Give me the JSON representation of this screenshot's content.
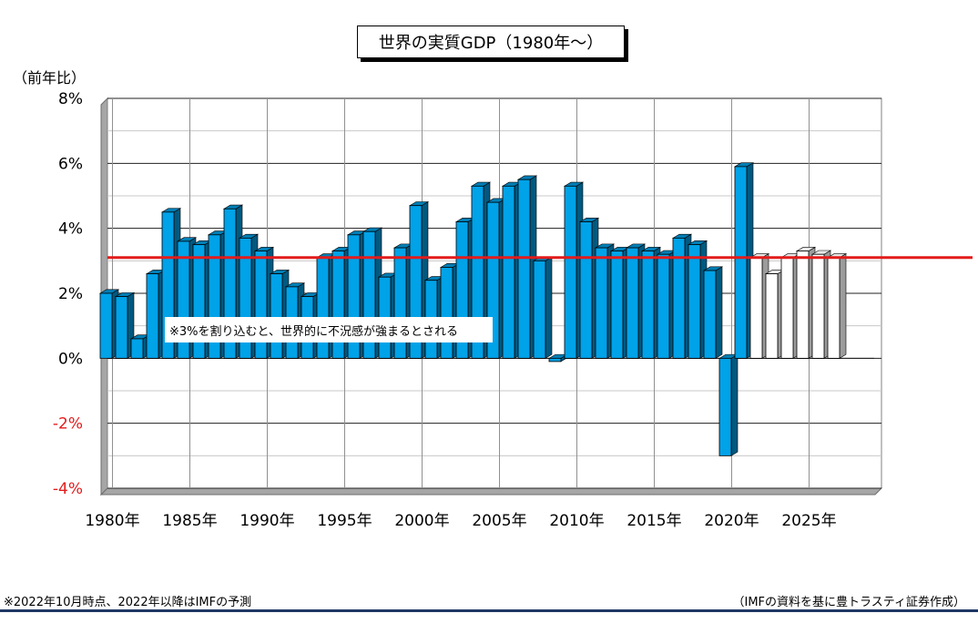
{
  "header": {
    "title": "世界の実質GDP（1980年～）",
    "ylabel": "（前年比）"
  },
  "footer": {
    "note": "※2022年10月時点、2022年以降はIMFの予測",
    "source": "（IMFの資料を基に豊トラスティ証券作成）"
  },
  "colors": {
    "actual_bar": "#00a2e8",
    "forecast_bar": "#ffffff",
    "reference_line": "#e31b1b",
    "negative_tick": "#e31b1b",
    "bottom_rule": "#1f3864"
  },
  "chart_data": {
    "type": "bar",
    "title": "世界の実質GDP（1980年～）",
    "ylabel": "（前年比）",
    "ylim": [
      -4,
      8
    ],
    "yticks": [
      {
        "value": 8,
        "label": "8%"
      },
      {
        "value": 6,
        "label": "6%"
      },
      {
        "value": 4,
        "label": "4%"
      },
      {
        "value": 2,
        "label": "2%"
      },
      {
        "value": 0,
        "label": "0%"
      },
      {
        "value": -2,
        "label": "-2%"
      },
      {
        "value": -4,
        "label": "-4%"
      }
    ],
    "xticks": [
      {
        "year": 1980,
        "label": "1980年"
      },
      {
        "year": 1985,
        "label": "1985年"
      },
      {
        "year": 1990,
        "label": "1990年"
      },
      {
        "year": 1995,
        "label": "1995年"
      },
      {
        "year": 2000,
        "label": "2000年"
      },
      {
        "year": 2005,
        "label": "2005年"
      },
      {
        "year": 2010,
        "label": "2010年"
      },
      {
        "year": 2015,
        "label": "2015年"
      },
      {
        "year": 2020,
        "label": "2020年"
      },
      {
        "year": 2025,
        "label": "2025年"
      }
    ],
    "years": [
      1980,
      1981,
      1982,
      1983,
      1984,
      1985,
      1986,
      1987,
      1988,
      1989,
      1990,
      1991,
      1992,
      1993,
      1994,
      1995,
      1996,
      1997,
      1998,
      1999,
      2000,
      2001,
      2002,
      2003,
      2004,
      2005,
      2006,
      2007,
      2008,
      2009,
      2010,
      2011,
      2012,
      2013,
      2014,
      2015,
      2016,
      2017,
      2018,
      2019,
      2020,
      2021,
      2022,
      2023,
      2024,
      2025,
      2026,
      2027
    ],
    "values": [
      2.0,
      1.9,
      0.6,
      2.6,
      4.5,
      3.6,
      3.5,
      3.8,
      4.6,
      3.7,
      3.3,
      2.6,
      2.2,
      1.9,
      3.1,
      3.3,
      3.8,
      3.9,
      2.5,
      3.4,
      4.7,
      2.4,
      2.8,
      4.2,
      5.3,
      4.8,
      5.3,
      5.5,
      3.0,
      -0.1,
      5.3,
      4.2,
      3.4,
      3.3,
      3.4,
      3.3,
      3.2,
      3.7,
      3.5,
      2.7,
      -3.0,
      5.9,
      3.1,
      2.6,
      3.1,
      3.3,
      3.2,
      3.1
    ],
    "forecast_from": 2022,
    "reference_line": 3.1,
    "annotation": "※3%を割り込むと、世界的に不況感が強まるとされる",
    "grid": true
  }
}
